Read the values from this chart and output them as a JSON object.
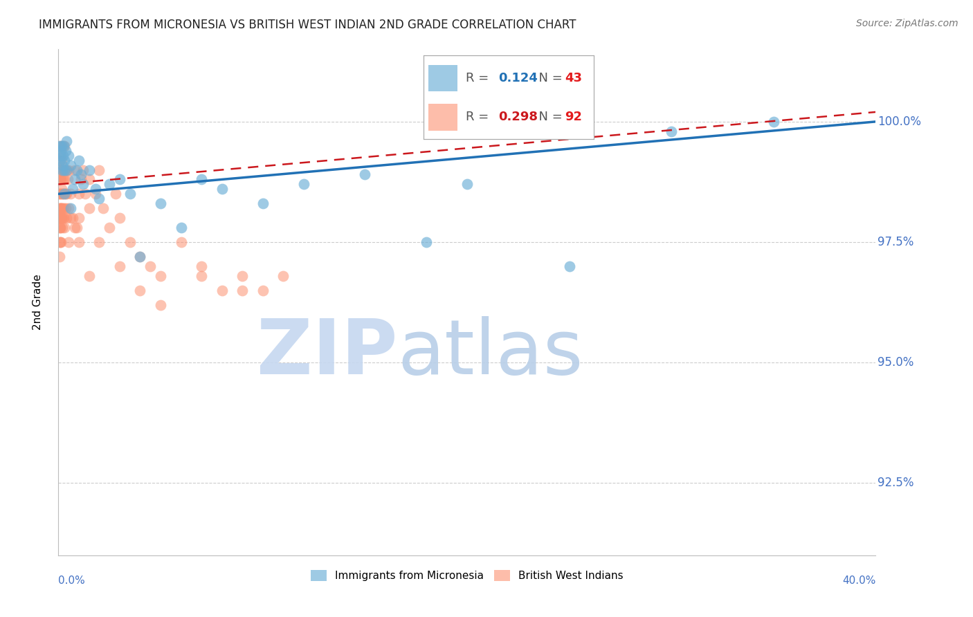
{
  "title": "IMMIGRANTS FROM MICRONESIA VS BRITISH WEST INDIAN 2ND GRADE CORRELATION CHART",
  "source": "Source: ZipAtlas.com",
  "ylabel": "2nd Grade",
  "yticks": [
    92.5,
    95.0,
    97.5,
    100.0
  ],
  "ytick_labels": [
    "92.5%",
    "95.0%",
    "97.5%",
    "100.0%"
  ],
  "xmin": 0.0,
  "xmax": 40.0,
  "ymin": 91.0,
  "ymax": 101.5,
  "blue_R": 0.124,
  "blue_N": 43,
  "pink_R": 0.298,
  "pink_N": 92,
  "blue_color": "#6baed6",
  "pink_color": "#fc9272",
  "blue_line_color": "#2171b5",
  "pink_line_color": "#cb181d",
  "blue_label": "Immigrants from Micronesia",
  "pink_label": "British West Indians",
  "watermark_zip_color": "#c6d8f0",
  "watermark_atlas_color": "#b8cfe8",
  "blue_x": [
    0.05,
    0.08,
    0.1,
    0.12,
    0.15,
    0.18,
    0.2,
    0.22,
    0.25,
    0.28,
    0.3,
    0.35,
    0.4,
    0.5,
    0.6,
    0.7,
    0.8,
    0.9,
    1.0,
    1.1,
    1.2,
    1.5,
    1.8,
    2.0,
    2.5,
    3.0,
    3.5,
    4.0,
    5.0,
    6.0,
    7.0,
    8.0,
    10.0,
    12.0,
    15.0,
    18.0,
    20.0,
    25.0,
    30.0,
    35.0,
    0.3,
    0.4,
    0.6
  ],
  "blue_y": [
    99.5,
    99.2,
    99.3,
    99.4,
    99.5,
    99.0,
    99.1,
    99.3,
    99.5,
    99.0,
    99.2,
    99.4,
    99.6,
    99.3,
    99.1,
    98.6,
    98.8,
    99.0,
    99.2,
    98.9,
    98.7,
    99.0,
    98.6,
    98.4,
    98.7,
    98.8,
    98.5,
    97.2,
    98.3,
    97.8,
    98.8,
    98.6,
    98.3,
    98.7,
    98.9,
    97.5,
    98.7,
    97.0,
    99.8,
    100.0,
    98.5,
    99.0,
    98.2
  ],
  "pink_x": [
    0.02,
    0.03,
    0.04,
    0.05,
    0.05,
    0.06,
    0.07,
    0.07,
    0.08,
    0.08,
    0.09,
    0.1,
    0.1,
    0.11,
    0.12,
    0.12,
    0.13,
    0.14,
    0.15,
    0.15,
    0.16,
    0.17,
    0.18,
    0.18,
    0.2,
    0.2,
    0.22,
    0.25,
    0.25,
    0.28,
    0.3,
    0.3,
    0.35,
    0.4,
    0.4,
    0.45,
    0.5,
    0.5,
    0.6,
    0.7,
    0.8,
    0.9,
    1.0,
    1.0,
    1.1,
    1.2,
    1.3,
    1.5,
    1.5,
    1.8,
    2.0,
    2.2,
    2.5,
    2.8,
    3.0,
    3.5,
    4.0,
    4.5,
    5.0,
    6.0,
    7.0,
    8.0,
    9.0,
    10.0,
    0.05,
    0.06,
    0.07,
    0.08,
    0.09,
    0.1,
    0.12,
    0.14,
    0.16,
    0.18,
    0.2,
    0.22,
    0.25,
    0.3,
    0.35,
    0.4,
    0.5,
    0.6,
    0.8,
    1.0,
    1.5,
    2.0,
    3.0,
    4.0,
    5.0,
    7.0,
    9.0,
    11.0
  ],
  "pink_y": [
    98.5,
    98.2,
    98.8,
    98.0,
    99.0,
    98.5,
    99.2,
    98.0,
    98.8,
    97.8,
    99.5,
    98.8,
    98.2,
    99.0,
    98.5,
    99.3,
    98.8,
    98.2,
    98.6,
    99.2,
    98.0,
    99.0,
    98.5,
    99.5,
    98.2,
    99.0,
    98.8,
    98.5,
    98.0,
    98.8,
    99.0,
    99.5,
    98.2,
    99.0,
    98.5,
    98.8,
    98.2,
    99.0,
    98.5,
    98.0,
    99.0,
    97.8,
    98.5,
    98.0,
    98.8,
    99.0,
    98.5,
    98.2,
    98.8,
    98.5,
    99.0,
    98.2,
    97.8,
    98.5,
    98.0,
    97.5,
    97.2,
    97.0,
    96.8,
    97.5,
    97.0,
    96.5,
    96.8,
    96.5,
    97.5,
    97.2,
    97.8,
    97.5,
    98.0,
    97.8,
    98.2,
    97.5,
    98.0,
    97.8,
    98.5,
    98.0,
    98.2,
    97.8,
    98.5,
    98.0,
    97.5,
    98.0,
    97.8,
    97.5,
    96.8,
    97.5,
    97.0,
    96.5,
    96.2,
    96.8,
    96.5,
    96.8
  ]
}
